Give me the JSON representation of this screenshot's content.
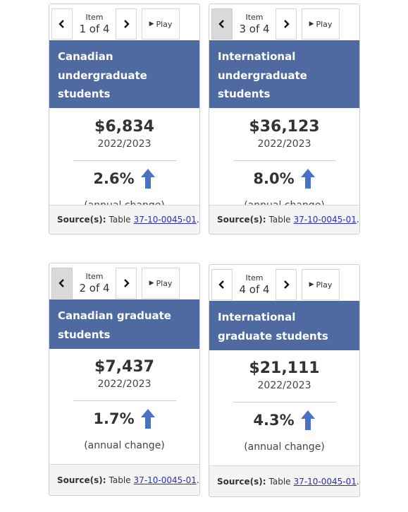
{
  "controls": {
    "item_label": "Item",
    "play_label": "Play"
  },
  "source": {
    "label": "Source(s):",
    "table_prefix": "Table",
    "table_link": "37-10-0045-01",
    "suffix": "."
  },
  "cards": [
    {
      "counter": "1 of 4",
      "title": "Canadian undergraduate students",
      "value": "$6,834",
      "year": "2022/2023",
      "change": "2.6%",
      "change_note": "(annual change)"
    },
    {
      "counter": "3 of 4",
      "title": "International undergraduate students",
      "value": "$36,123",
      "year": "2022/2023",
      "change": "8.0%",
      "change_note": "(annual change)"
    },
    {
      "counter": "2 of 4",
      "title": "Canadian graduate students",
      "value": "$7,437",
      "year": "2022/2023",
      "change": "1.7%",
      "change_note": "(annual change)"
    },
    {
      "counter": "4 of 4",
      "title": "International graduate students",
      "value": "$21,111",
      "year": "2022/2023",
      "change": "4.3%",
      "change_note": "(annual change)"
    }
  ],
  "colors": {
    "header": "#4f6aa1",
    "arrow": "#4a72c4",
    "link": "#2b2ec8"
  },
  "icons": {
    "prev": "chevron-left-icon",
    "next": "chevron-right-icon",
    "play": "play-icon",
    "trend": "arrow-up-icon"
  }
}
